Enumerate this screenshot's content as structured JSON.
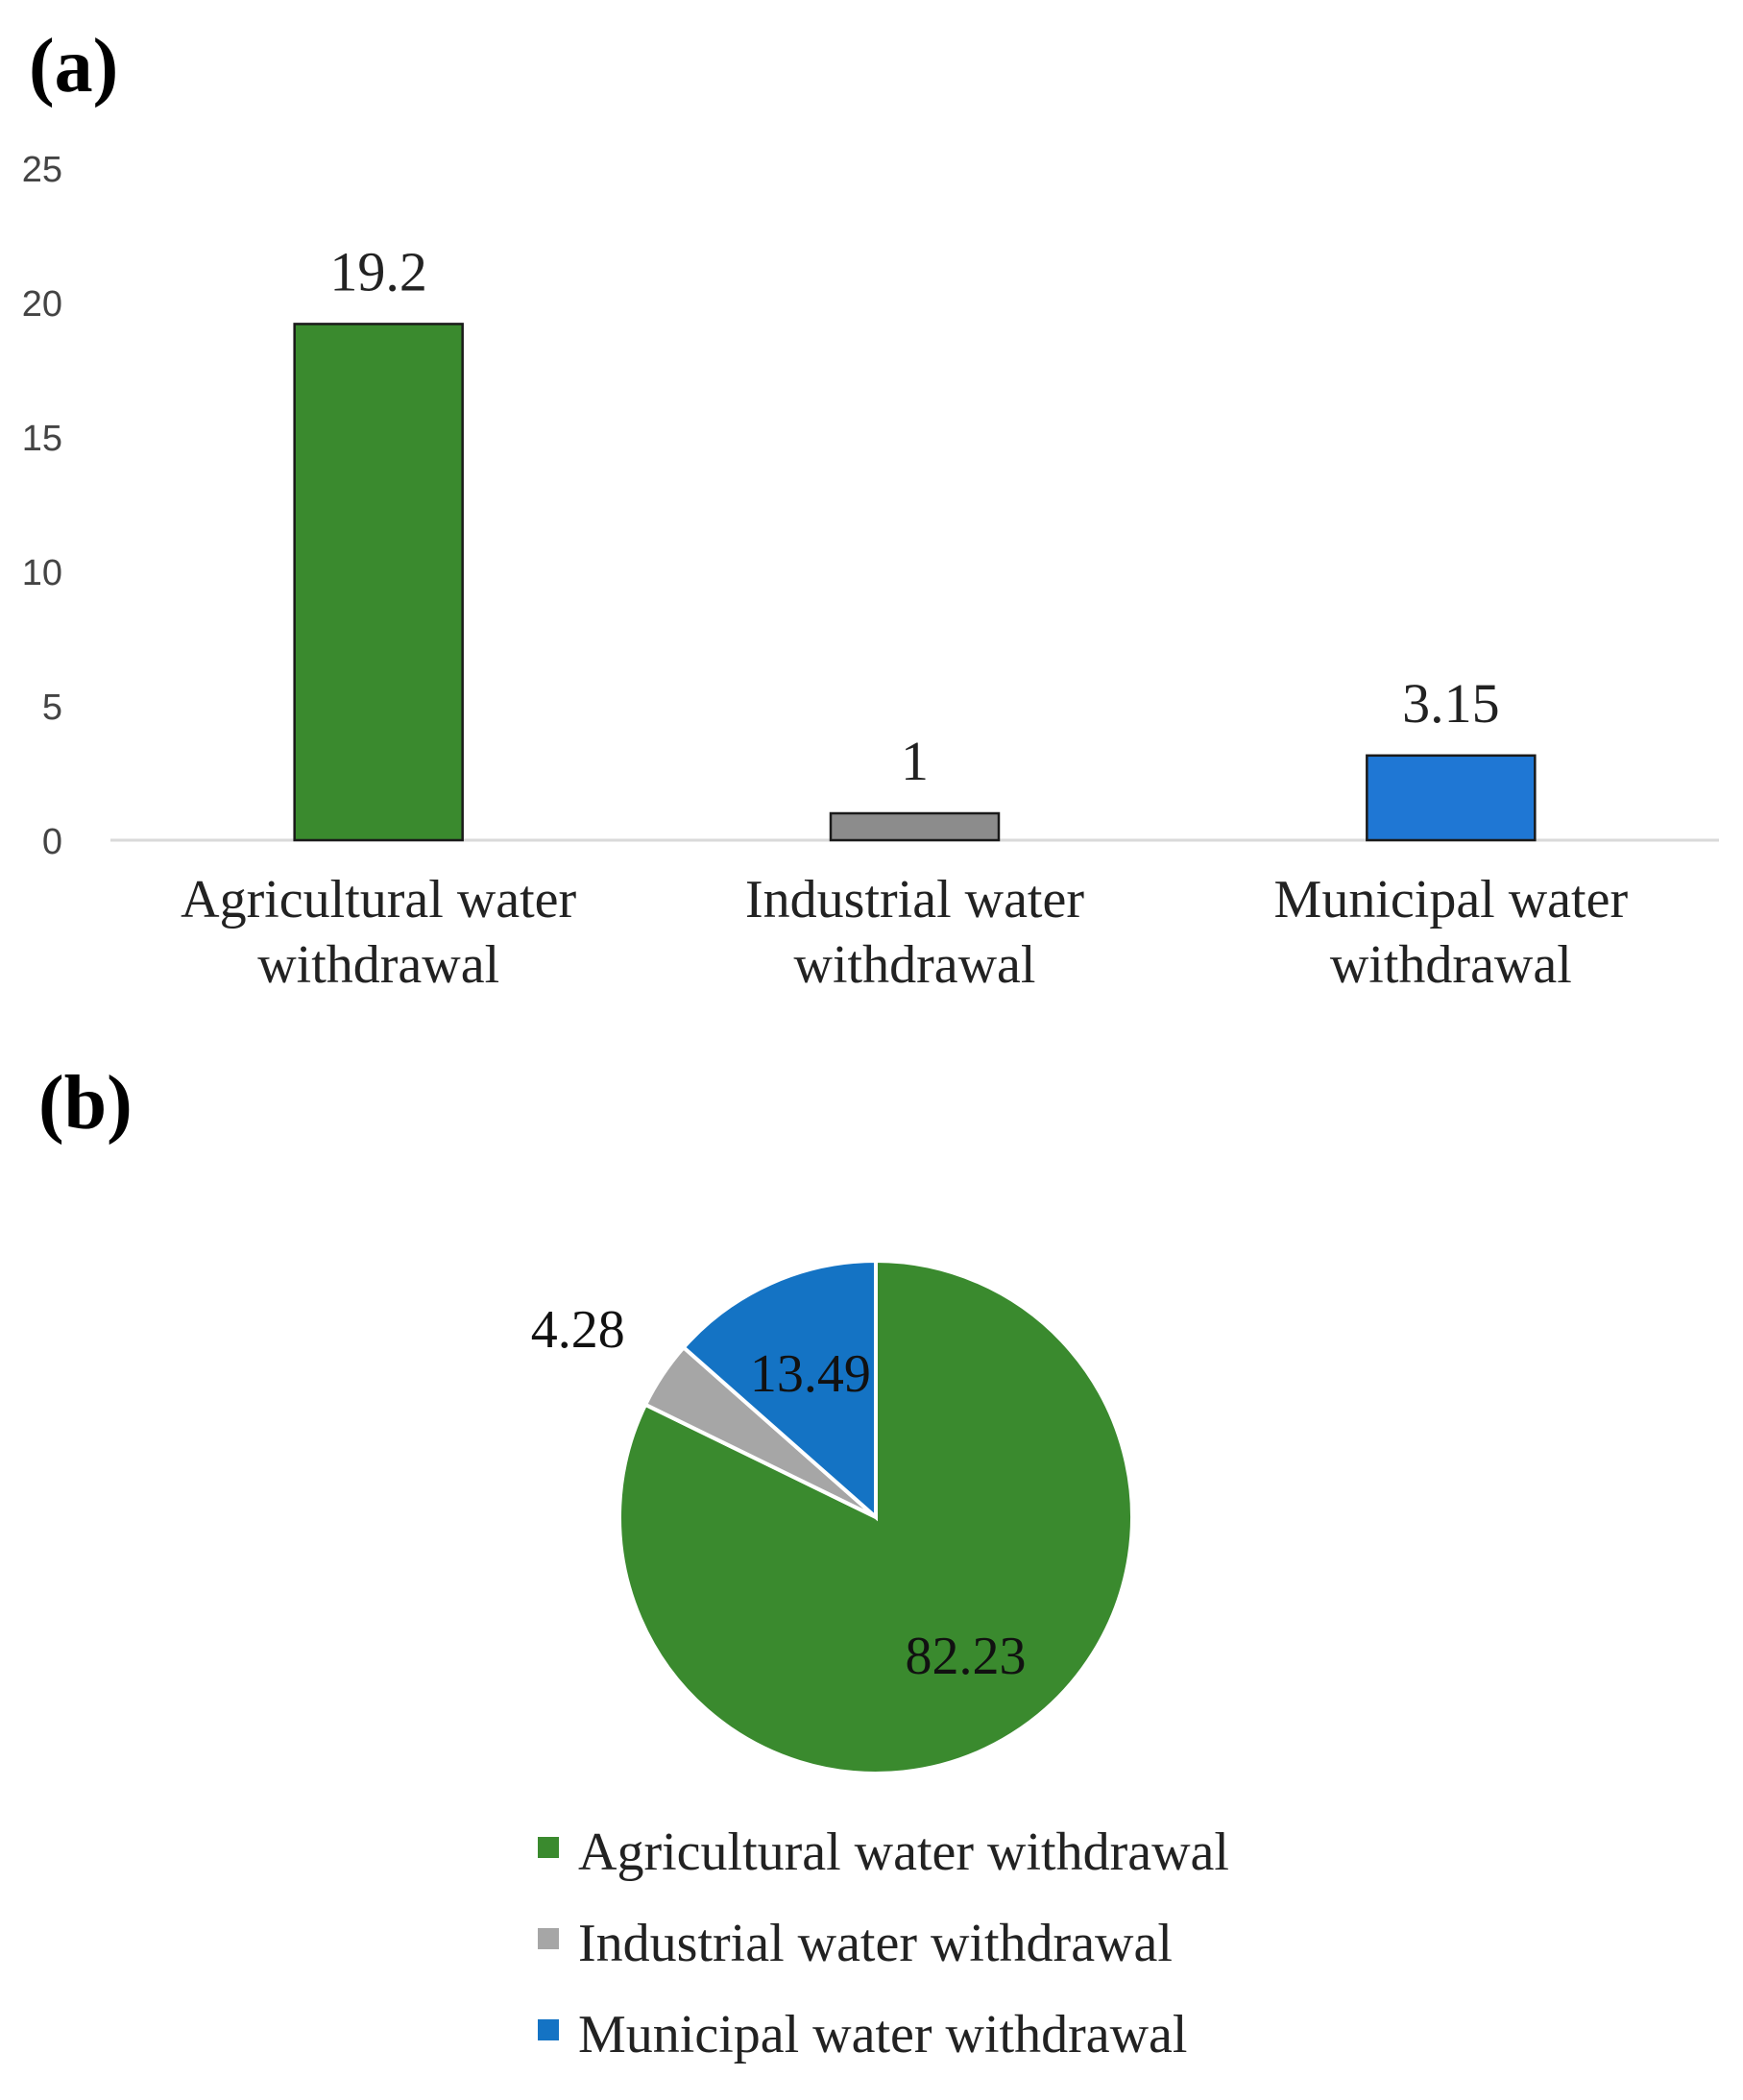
{
  "chart_data": [
    {
      "type": "bar",
      "panel_label": "(a)",
      "categories": [
        [
          "Agricultural water",
          "withdrawal"
        ],
        [
          "Industrial water",
          "withdrawal"
        ],
        [
          "Municipal water",
          "withdrawal"
        ]
      ],
      "values": [
        19.2,
        1,
        3.15
      ],
      "data_labels": [
        "19.2",
        "1",
        "3.15"
      ],
      "colors": [
        "#3a8a2e",
        "#8c8c8c",
        "#1f77d4"
      ],
      "yticks": [
        "0",
        "5",
        "10",
        "15",
        "20",
        "25"
      ],
      "ylim": [
        0,
        25
      ],
      "grid": false,
      "title": "",
      "xlabel": "",
      "ylabel": ""
    },
    {
      "type": "pie",
      "panel_label": "(b)",
      "slices": [
        {
          "name": "Agricultural water withdrawal",
          "value": 82.23,
          "label": "82.23",
          "color": "#3a8a2e"
        },
        {
          "name": "Industrial water withdrawal",
          "value": 4.28,
          "label": "4.28",
          "color": "#a6a6a6"
        },
        {
          "name": "Municipal water withdrawal",
          "value": 13.49,
          "label": "13.49",
          "color": "#1473c4"
        }
      ],
      "legend_entries": [
        "Agricultural water withdrawal",
        "Industrial water withdrawal",
        "Municipal water withdrawal"
      ],
      "legend_placement": "bottom",
      "title": ""
    }
  ]
}
